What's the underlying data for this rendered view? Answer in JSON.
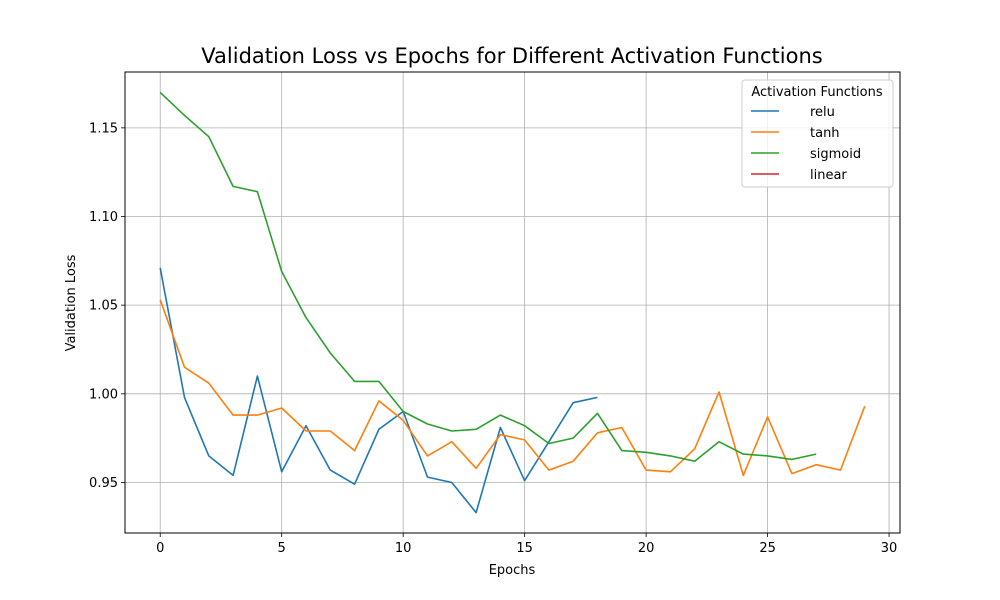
{
  "chart_data": {
    "type": "line",
    "title": "Validation Loss vs Epochs for Different Activation Functions",
    "xlabel": "Epochs",
    "ylabel": "Validation Loss",
    "xlim": [
      -1.45,
      30.45
    ],
    "ylim": [
      0.9215,
      1.1815
    ],
    "xticks": [
      0,
      5,
      10,
      15,
      20,
      25,
      30
    ],
    "xtick_labels": [
      "0",
      "5",
      "10",
      "15",
      "20",
      "25",
      "30"
    ],
    "yticks": [
      0.95,
      1.0,
      1.05,
      1.1,
      1.15
    ],
    "ytick_labels": [
      "0.95",
      "1.00",
      "1.05",
      "1.10",
      "1.15"
    ],
    "grid": true,
    "legend": {
      "title": "Activation Functions",
      "placement": "top-right"
    },
    "series": [
      {
        "name": "relu",
        "color": "#1f77b4",
        "x": [
          0,
          1,
          2,
          3,
          4,
          5,
          6,
          7,
          8,
          9,
          10,
          11,
          12,
          13,
          14,
          15,
          16,
          17,
          18
        ],
        "values": [
          1.071,
          0.998,
          0.965,
          0.954,
          1.01,
          0.956,
          0.982,
          0.957,
          0.949,
          0.98,
          0.99,
          0.953,
          0.95,
          0.933,
          0.981,
          0.951,
          0.973,
          0.995,
          0.998
        ]
      },
      {
        "name": "tanh",
        "color": "#ff7f0e",
        "x": [
          0,
          1,
          2,
          3,
          4,
          5,
          6,
          7,
          8,
          9,
          10,
          11,
          12,
          13,
          14,
          15,
          16,
          17,
          18,
          19,
          20,
          21,
          22,
          23,
          24,
          25,
          26,
          27,
          28,
          29
        ],
        "values": [
          1.053,
          1.015,
          1.006,
          0.988,
          0.988,
          0.992,
          0.979,
          0.979,
          0.968,
          0.996,
          0.985,
          0.965,
          0.973,
          0.958,
          0.977,
          0.974,
          0.957,
          0.962,
          0.978,
          0.981,
          0.957,
          0.956,
          0.969,
          1.001,
          0.954,
          0.987,
          0.955,
          0.96,
          0.957,
          0.993
        ]
      },
      {
        "name": "sigmoid",
        "color": "#2ca02c",
        "x": [
          0,
          1,
          2,
          3,
          4,
          5,
          6,
          7,
          8,
          9,
          10,
          11,
          12,
          13,
          14,
          15,
          16,
          17,
          18,
          19,
          20,
          21,
          22,
          23,
          24,
          25,
          26,
          27
        ],
        "values": [
          1.17,
          1.157,
          1.145,
          1.117,
          1.114,
          1.069,
          1.043,
          1.023,
          1.007,
          1.007,
          0.99,
          0.983,
          0.979,
          0.98,
          0.988,
          0.982,
          0.972,
          0.975,
          0.989,
          0.968,
          0.967,
          0.965,
          0.962,
          0.973,
          0.966,
          0.965,
          0.963,
          0.966
        ]
      },
      {
        "name": "linear",
        "color": "#d62728",
        "x": [],
        "values": []
      }
    ]
  }
}
